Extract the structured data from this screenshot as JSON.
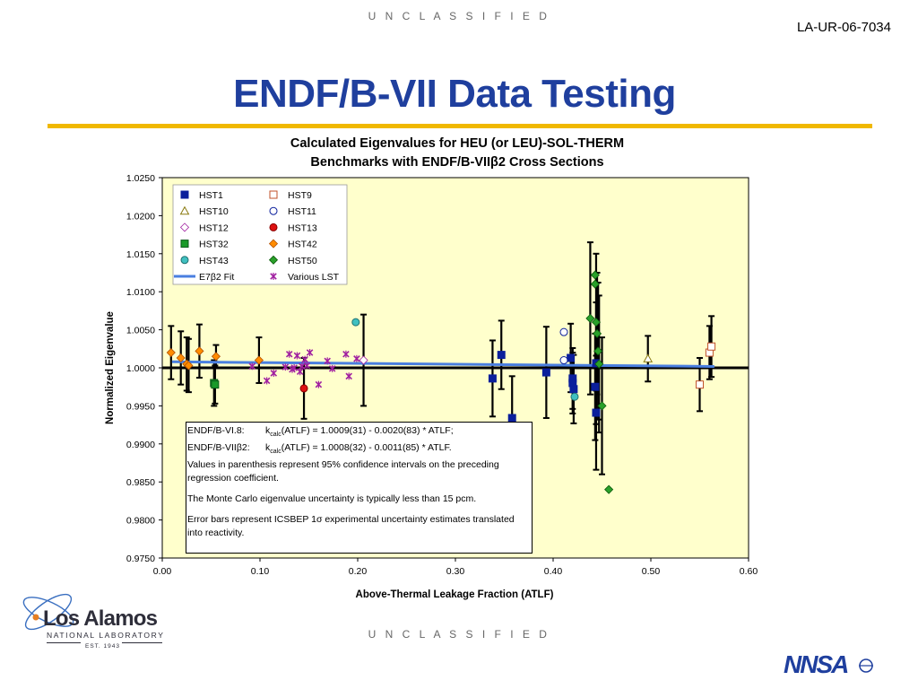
{
  "header": {
    "classification_top": "U N C L A S S I F I E D",
    "doc_id": "LA-UR-06-7034",
    "slide_title": "ENDF/B-VII Data Testing"
  },
  "footer": {
    "classification_bottom": "U N C L A S S I F I E D",
    "lab_name": "Los Alamos",
    "lab_sub": "NATIONAL LABORATORY",
    "lab_est": "EST. 1943",
    "nnsa_logo_text": "NNSA"
  },
  "annotation": {
    "line1_label": "ENDF/B-VI.8:",
    "line1_k": "k",
    "line1_sub": "calc",
    "line1_eq": "(ATLF) = 1.0009(31) - 0.0020(83) * ATLF;",
    "line2_label": "ENDF/B-VIIβ2:",
    "line2_k": "k",
    "line2_sub": "calc",
    "line2_eq": "(ATLF) = 1.0008(32) - 0.0011(85) * ATLF.",
    "line3": "Values in parenthesis represent 95% confidence intervals on the preceding regression coefficient.",
    "line4": "The Monte Carlo eigenvalue uncertainty is typically less than 15 pcm.",
    "line5": "Error bars represent ICSBEP 1σ experimental uncertainty estimates translated into reactivity."
  },
  "chart_data": {
    "type": "scatter",
    "title": "Calculated Eigenvalues for HEU (or LEU)-SOL-THERM",
    "subtitle": "Benchmarks with ENDF/B-VIIβ2 Cross Sections",
    "xlabel": "Above-Thermal Leakage Fraction (ATLF)",
    "ylabel": "Normalized Eigenvalue",
    "xlim": [
      0,
      0.6
    ],
    "ylim": [
      0.975,
      1.025
    ],
    "x_ticks": [
      "0.00",
      "0.10",
      "0.20",
      "0.30",
      "0.40",
      "0.50",
      "0.60"
    ],
    "y_ticks": [
      "1.0250",
      "1.0200",
      "1.0150",
      "1.0100",
      "1.0050",
      "1.0000",
      "0.9950",
      "0.9900",
      "0.9850",
      "0.9800",
      "0.9750"
    ],
    "plot_background": "#ffffcc",
    "grid": "none",
    "legend_position": "top-left",
    "reference_line": 1.0,
    "fit": {
      "name": "E7β2 Fit",
      "color": "#4a7fe0",
      "x": [
        0.01,
        0.565
      ],
      "y": [
        1.00079,
        1.00018
      ]
    },
    "series": [
      {
        "name": "HST1",
        "marker": "square",
        "fill": "#0b1f9c",
        "stroke": "#0b1f9c",
        "points": [
          [
            0.338,
            0.9986
          ],
          [
            0.347,
            1.0017
          ],
          [
            0.358,
            0.9934
          ],
          [
            0.393,
            0.9994
          ],
          [
            0.418,
            1.0013
          ],
          [
            0.42,
            0.9986
          ],
          [
            0.42,
            0.998
          ],
          [
            0.421,
            0.9972
          ],
          [
            0.443,
            0.9975
          ],
          [
            0.444,
            1.0006
          ],
          [
            0.444,
            0.9941
          ]
        ],
        "errors": [
          0.005,
          0.0045,
          0.0055,
          0.006,
          0.0045,
          0.004,
          0.004,
          0.0045,
          0.007,
          0.008,
          0.0075
        ]
      },
      {
        "name": "HST9",
        "marker": "square",
        "fill": "#ffffff",
        "stroke": "#c0522a",
        "points": [
          [
            0.55,
            0.9978
          ],
          [
            0.56,
            1.002
          ],
          [
            0.562,
            1.0028
          ]
        ],
        "errors": [
          0.0035,
          0.0035,
          0.004
        ]
      },
      {
        "name": "HST10",
        "marker": "triangle",
        "fill": "#ffffff",
        "stroke": "#8a7a10",
        "points": [
          [
            0.497,
            1.0012
          ]
        ],
        "errors": [
          0.003
        ]
      },
      {
        "name": "HST11",
        "marker": "circle",
        "fill": "#ffffff",
        "stroke": "#0b1f9c",
        "points": [
          [
            0.411,
            1.0047
          ],
          [
            0.411,
            1.001
          ]
        ],
        "errors": [
          0,
          0
        ]
      },
      {
        "name": "HST12",
        "marker": "diamond",
        "fill": "#ffffff",
        "stroke": "#a020a0",
        "points": [
          [
            0.206,
            1.001
          ]
        ],
        "errors": [
          0.006
        ]
      },
      {
        "name": "HST13",
        "marker": "circle",
        "fill": "#dd1111",
        "stroke": "#880000",
        "points": [
          [
            0.145,
            0.9973
          ]
        ],
        "errors": [
          0.004
        ]
      },
      {
        "name": "HST32",
        "marker": "square",
        "fill": "#1a9a2a",
        "stroke": "#0a5a1a",
        "points": [
          [
            0.053,
            0.998
          ],
          [
            0.054,
            0.9978
          ]
        ],
        "errors": [
          0.003,
          0.0025
        ]
      },
      {
        "name": "HST42",
        "marker": "diamond",
        "fill": "#ff8c00",
        "stroke": "#b05000",
        "points": [
          [
            0.009,
            1.002
          ],
          [
            0.019,
            1.0013
          ],
          [
            0.025,
            1.0005
          ],
          [
            0.027,
            1.0003
          ],
          [
            0.038,
            1.0022
          ],
          [
            0.055,
            1.0015
          ],
          [
            0.099,
            1.001
          ]
        ],
        "errors": [
          0.0035,
          0.0035,
          0.0035,
          0.0035,
          0.0035,
          0.0015,
          0.003
        ]
      },
      {
        "name": "HST43",
        "marker": "circle",
        "fill": "#40c0c0",
        "stroke": "#207070",
        "points": [
          [
            0.198,
            1.006
          ],
          [
            0.422,
            0.9962
          ]
        ],
        "errors": [
          0,
          0
        ]
      },
      {
        "name": "HST50",
        "marker": "diamond",
        "fill": "#2aa02a",
        "stroke": "#0a5a0a",
        "points": [
          [
            0.443,
            1.0122
          ],
          [
            0.443,
            1.011
          ],
          [
            0.438,
            1.0065
          ],
          [
            0.444,
            1.006
          ],
          [
            0.445,
            1.0045
          ],
          [
            0.446,
            1.0022
          ],
          [
            0.447,
            1.0005
          ],
          [
            0.45,
            0.995
          ],
          [
            0.457,
            0.984
          ]
        ],
        "errors": [
          0,
          0,
          0.01,
          0.009,
          0.008,
          0.009,
          0.009,
          0.009,
          0
        ]
      },
      {
        "name": "Various LST",
        "marker": "asterisk",
        "fill": "#a020a0",
        "stroke": "#a020a0",
        "points": [
          [
            0.092,
            1.0002
          ],
          [
            0.107,
            0.9983
          ],
          [
            0.114,
            0.9993
          ],
          [
            0.126,
            1.0001
          ],
          [
            0.13,
            1.0018
          ],
          [
            0.133,
            0.9998
          ],
          [
            0.135,
            1.0
          ],
          [
            0.138,
            1.0016
          ],
          [
            0.141,
            0.9995
          ],
          [
            0.143,
            1.0002
          ],
          [
            0.146,
            1.0011
          ],
          [
            0.148,
            1.0003
          ],
          [
            0.151,
            1.002
          ],
          [
            0.16,
            0.9978
          ],
          [
            0.169,
            1.0009
          ],
          [
            0.174,
            0.9999
          ],
          [
            0.188,
            1.0018
          ],
          [
            0.191,
            0.9989
          ],
          [
            0.199,
            1.0012
          ]
        ],
        "errors": []
      }
    ]
  }
}
